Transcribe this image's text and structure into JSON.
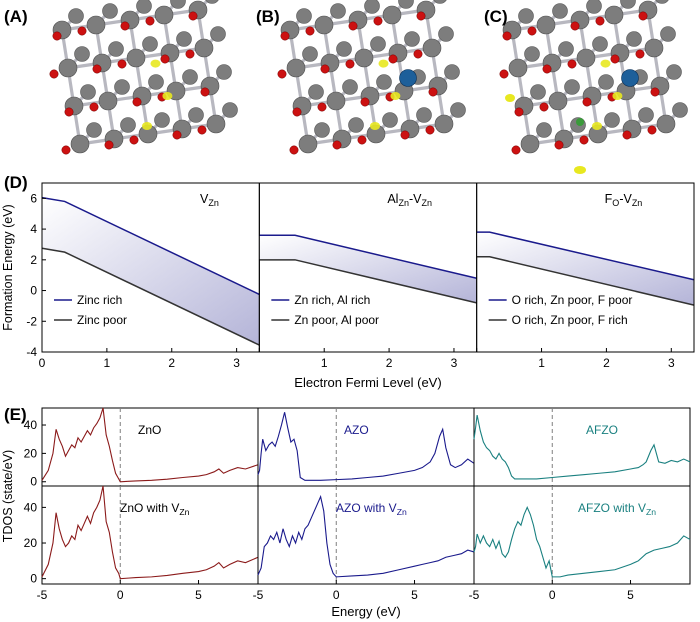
{
  "panel_labels": [
    "(A)",
    "(B)",
    "(C)",
    "(D)",
    "(E)"
  ],
  "colors": {
    "zinc_atom": "#7d7d7d",
    "oxygen_atom": "#cc1111",
    "aluminium_atom": "#1d5f9a",
    "fluorine_atom": "#3a9a3a",
    "charge_isosurface": "#e8e820",
    "rich_line": "#1a1a8c",
    "poor_line": "#333333",
    "zno_dos": "#8b1a1a",
    "azo_dos": "#1a1a8c",
    "afzo_dos": "#1a8080"
  },
  "structures": [
    {
      "panel": "(A)",
      "dopant": "none"
    },
    {
      "panel": "(B)",
      "dopant": "Al"
    },
    {
      "panel": "(C)",
      "dopant": "Al+F"
    }
  ],
  "chart_data": [
    {
      "type": "line",
      "panel": "(D)",
      "ylabel": "Formation Energy (eV)",
      "xlabel": "Electron Fermi Level (eV)",
      "ylim": [
        -4,
        7
      ],
      "yticks": [
        -4,
        -2,
        0,
        2,
        4,
        6
      ],
      "xlim": [
        0,
        3.35
      ],
      "xticks": [
        0,
        1,
        2,
        3
      ],
      "shaded_between_series": true,
      "subplots": [
        {
          "title": "V",
          "title_sub": "Zn",
          "title_mid": "",
          "series": [
            {
              "name": "Zinc rich",
              "x": [
                0,
                0.35,
                3.35
              ],
              "y": [
                6.05,
                5.8,
                -0.25
              ]
            },
            {
              "name": "Zinc poor",
              "x": [
                0,
                0.35,
                3.35
              ],
              "y": [
                2.75,
                2.5,
                -3.55
              ]
            }
          ],
          "legend_position": "lower-left"
        },
        {
          "title": "Al",
          "title_sub": "Zn",
          "title_mid": "-V",
          "title_sub2": "Zn",
          "series": [
            {
              "name": "Zn rich, Al rich",
              "x": [
                0,
                0.55,
                3.35
              ],
              "y": [
                3.6,
                3.6,
                0.8
              ]
            },
            {
              "name": "Zn poor, Al poor",
              "x": [
                0,
                0.55,
                3.35
              ],
              "y": [
                2.0,
                2.0,
                -0.8
              ]
            }
          ],
          "legend_position": "lower-left"
        },
        {
          "title": "F",
          "title_sub": "O",
          "title_mid": "-V",
          "title_sub2": "Zn",
          "series": [
            {
              "name": "O rich, Zn poor,  F poor",
              "x": [
                0,
                0.2,
                3.35
              ],
              "y": [
                3.8,
                3.8,
                0.7
              ]
            },
            {
              "name": "O rich, Zn poor,  F rich",
              "x": [
                0,
                0.2,
                3.35
              ],
              "y": [
                2.2,
                2.2,
                -0.95
              ]
            }
          ],
          "legend_position": "lower-left"
        }
      ]
    },
    {
      "type": "line",
      "panel": "(E)",
      "ylabel": "TDOS (state/eV)",
      "xlabel": "Energy (eV)",
      "xlim": [
        -5,
        8.8
      ],
      "xticks": [
        -5,
        0,
        5
      ],
      "ylim": [
        -3,
        52
      ],
      "yticks": [
        0,
        20,
        40
      ],
      "fermi_level_line": 0,
      "subplots": [
        {
          "label": "ZnO",
          "label_sub": "",
          "row": 0,
          "col": 0,
          "x": [
            -5,
            -4.6,
            -4.3,
            -4.1,
            -3.9,
            -3.7,
            -3.5,
            -3.3,
            -3.1,
            -2.9,
            -2.7,
            -2.5,
            -2.3,
            -2.1,
            -1.9,
            -1.7,
            -1.5,
            -1.3,
            -1.1,
            -0.9,
            -0.7,
            -0.5,
            -0.3,
            -0.1,
            0,
            0.5,
            1,
            2,
            3,
            4,
            5,
            5.5,
            6,
            6.3,
            6.6,
            7,
            7.5,
            8,
            8.8
          ],
          "y": [
            1,
            8,
            20,
            37,
            30,
            25,
            18,
            22,
            26,
            24,
            31,
            28,
            32,
            36,
            33,
            38,
            41,
            45,
            52,
            33,
            25,
            15,
            6,
            2,
            0,
            0.3,
            0.6,
            1,
            1.8,
            3,
            4,
            5,
            7,
            9,
            6,
            8,
            10,
            9,
            12
          ]
        },
        {
          "label": "AZO",
          "label_sub": "",
          "row": 0,
          "col": 1,
          "x": [
            -5,
            -4.9,
            -4.8,
            -4.7,
            -4.5,
            -4.3,
            -4.1,
            -3.9,
            -3.7,
            -3.5,
            -3.3,
            -3.1,
            -2.9,
            -2.7,
            -2.5,
            -2.3,
            -2,
            -1.5,
            -1,
            0,
            1,
            2,
            3,
            4,
            5,
            5.5,
            6,
            6.3,
            6.6,
            6.8,
            7,
            7.3,
            7.6,
            8,
            8.4,
            8.8
          ],
          "y": [
            5,
            8,
            20,
            30,
            22,
            26,
            28,
            25,
            32,
            40,
            49,
            38,
            28,
            30,
            22,
            3,
            1,
            1,
            1,
            1.5,
            2,
            3,
            4,
            6,
            8,
            10,
            14,
            20,
            32,
            37,
            24,
            12,
            10,
            12,
            16,
            13
          ]
        },
        {
          "label": "AFZO",
          "label_sub": "",
          "row": 0,
          "col": 2,
          "x": [
            -5,
            -4.9,
            -4.8,
            -4.6,
            -4.4,
            -4.2,
            -4,
            -3.8,
            -3.6,
            -3.4,
            -3.2,
            -3,
            -2.8,
            -2.6,
            -2.4,
            -2,
            -1.5,
            -1,
            0,
            1,
            2,
            3,
            4,
            5,
            5.5,
            5.8,
            6,
            6.3,
            6.5,
            6.8,
            7.2,
            7.6,
            8,
            8.4,
            8.8
          ],
          "y": [
            30,
            38,
            47,
            36,
            28,
            24,
            22,
            18,
            16,
            20,
            16,
            14,
            10,
            4,
            2,
            2,
            2,
            2,
            3,
            4,
            5,
            6,
            7,
            9,
            10,
            12,
            14,
            22,
            26,
            14,
            13,
            15,
            14,
            16,
            14
          ]
        },
        {
          "label": "ZnO with V",
          "label_sub": "Zn",
          "row": 1,
          "col": 0,
          "x": [
            -5,
            -4.6,
            -4.3,
            -4.1,
            -3.9,
            -3.7,
            -3.5,
            -3.3,
            -3.1,
            -2.9,
            -2.7,
            -2.5,
            -2.3,
            -2.1,
            -1.9,
            -1.7,
            -1.5,
            -1.3,
            -1.1,
            -0.9,
            -0.7,
            -0.5,
            -0.3,
            -0.1,
            0,
            0.5,
            1,
            2,
            3,
            4,
            5,
            5.5,
            6,
            6.3,
            6.6,
            7,
            7.5,
            8,
            8.8
          ],
          "y": [
            1,
            8,
            20,
            37,
            28,
            22,
            18,
            20,
            24,
            22,
            30,
            27,
            31,
            35,
            31,
            37,
            40,
            44,
            52,
            32,
            26,
            15,
            6,
            3,
            0,
            0.3,
            0.6,
            1,
            1.8,
            3,
            4,
            5,
            7,
            9,
            6,
            8,
            10,
            9,
            12
          ]
        },
        {
          "label": "AZO with V",
          "label_sub": "Zn",
          "row": 1,
          "col": 1,
          "x": [
            -5,
            -4.8,
            -4.6,
            -4.4,
            -4.2,
            -4,
            -3.8,
            -3.6,
            -3.4,
            -3.2,
            -3,
            -2.8,
            -2.6,
            -2.4,
            -2.2,
            -2,
            -1.8,
            -1.6,
            -1.4,
            -1.2,
            -1,
            -0.8,
            -0.6,
            -0.4,
            -0.2,
            0,
            1,
            2,
            3,
            4,
            5,
            5.5,
            6,
            6.5,
            7,
            7.5,
            8,
            8.4,
            8.8
          ],
          "y": [
            2,
            6,
            18,
            20,
            24,
            22,
            26,
            20,
            28,
            22,
            18,
            24,
            20,
            26,
            22,
            28,
            30,
            34,
            38,
            42,
            46,
            38,
            20,
            8,
            3,
            1,
            1.5,
            2,
            3,
            5,
            7,
            8,
            9,
            10,
            12,
            13,
            14,
            16,
            15
          ]
        },
        {
          "label": "AFZO with V",
          "label_sub": "Zn",
          "row": 1,
          "col": 2,
          "x": [
            -5,
            -4.9,
            -4.8,
            -4.6,
            -4.4,
            -4.2,
            -4,
            -3.8,
            -3.6,
            -3.4,
            -3.2,
            -3,
            -2.8,
            -2.6,
            -2.4,
            -2.2,
            -2,
            -1.8,
            -1.6,
            -1.4,
            -1.2,
            -1,
            -0.8,
            -0.6,
            -0.4,
            -0.2,
            0,
            0.5,
            1,
            2,
            3,
            4,
            5,
            5.5,
            6,
            6.5,
            7,
            7.5,
            8,
            8.4,
            8.8
          ],
          "y": [
            15,
            18,
            25,
            20,
            24,
            20,
            18,
            22,
            17,
            21,
            14,
            12,
            15,
            22,
            28,
            32,
            30,
            36,
            40,
            36,
            30,
            22,
            18,
            12,
            6,
            10,
            1,
            1,
            2,
            3,
            4,
            5,
            8,
            10,
            14,
            16,
            17,
            18,
            20,
            24,
            22
          ]
        }
      ]
    }
  ]
}
